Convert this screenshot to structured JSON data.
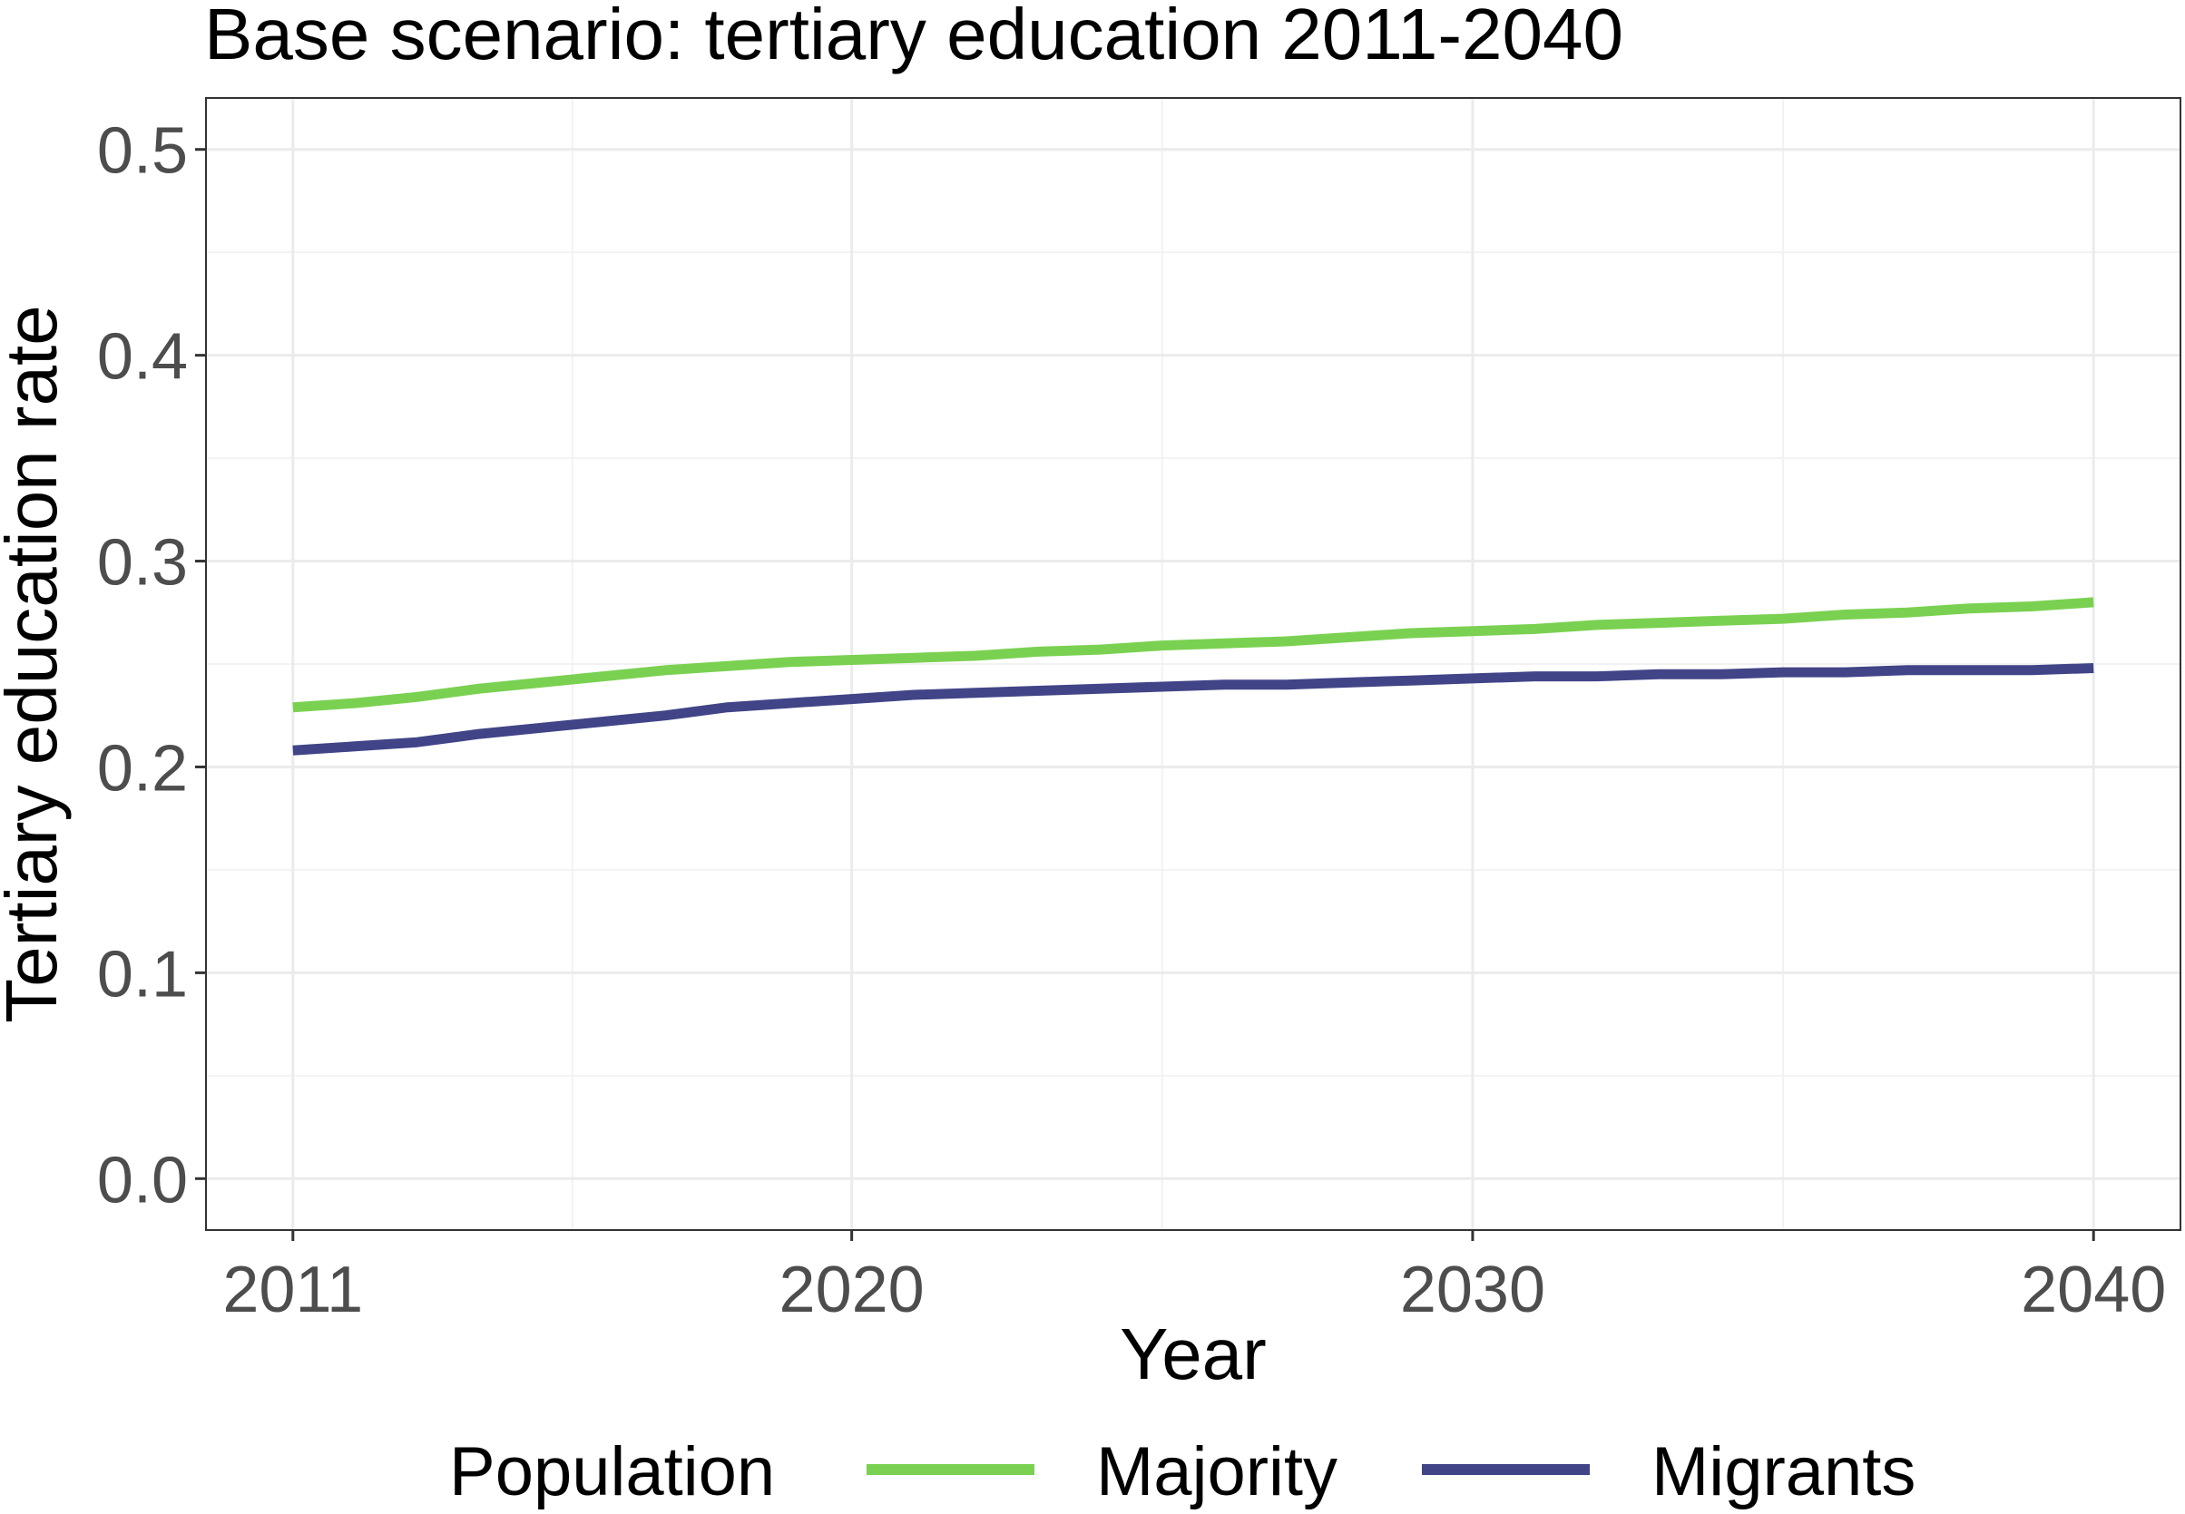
{
  "chart_data": {
    "type": "line",
    "title": "Base scenario: tertiary education 2011-2040",
    "xlabel": "Year",
    "ylabel": "Tertiary education rate",
    "xlim": [
      2009.6,
      2041.4
    ],
    "ylim": [
      -0.025,
      0.525
    ],
    "xticks": [
      "2011",
      "2020",
      "2030",
      "2040"
    ],
    "xtick_values": [
      2011,
      2020,
      2030,
      2040
    ],
    "yticks": [
      "0.0",
      "0.1",
      "0.2",
      "0.3",
      "0.4",
      "0.5"
    ],
    "ytick_values": [
      0,
      0.1,
      0.2,
      0.3,
      0.4,
      0.5
    ],
    "grid": true,
    "legend": {
      "title": "Population",
      "position": "bottom"
    },
    "x": [
      2011,
      2012,
      2013,
      2014,
      2015,
      2016,
      2017,
      2018,
      2019,
      2020,
      2021,
      2022,
      2023,
      2024,
      2025,
      2026,
      2027,
      2028,
      2029,
      2030,
      2031,
      2032,
      2033,
      2034,
      2035,
      2036,
      2037,
      2038,
      2039,
      2040
    ],
    "series": [
      {
        "name": "Majority",
        "color": "#7ad151",
        "values": [
          0.229,
          0.231,
          0.234,
          0.238,
          0.241,
          0.244,
          0.247,
          0.249,
          0.251,
          0.252,
          0.253,
          0.254,
          0.256,
          0.257,
          0.259,
          0.26,
          0.261,
          0.263,
          0.265,
          0.266,
          0.267,
          0.269,
          0.27,
          0.271,
          0.272,
          0.274,
          0.275,
          0.277,
          0.278,
          0.28
        ]
      },
      {
        "name": "Migrants",
        "color": "#414487",
        "values": [
          0.208,
          0.21,
          0.212,
          0.216,
          0.219,
          0.222,
          0.225,
          0.229,
          0.231,
          0.233,
          0.235,
          0.236,
          0.237,
          0.238,
          0.239,
          0.24,
          0.24,
          0.241,
          0.242,
          0.243,
          0.244,
          0.244,
          0.245,
          0.245,
          0.246,
          0.246,
          0.247,
          0.247,
          0.247,
          0.248
        ]
      }
    ]
  }
}
